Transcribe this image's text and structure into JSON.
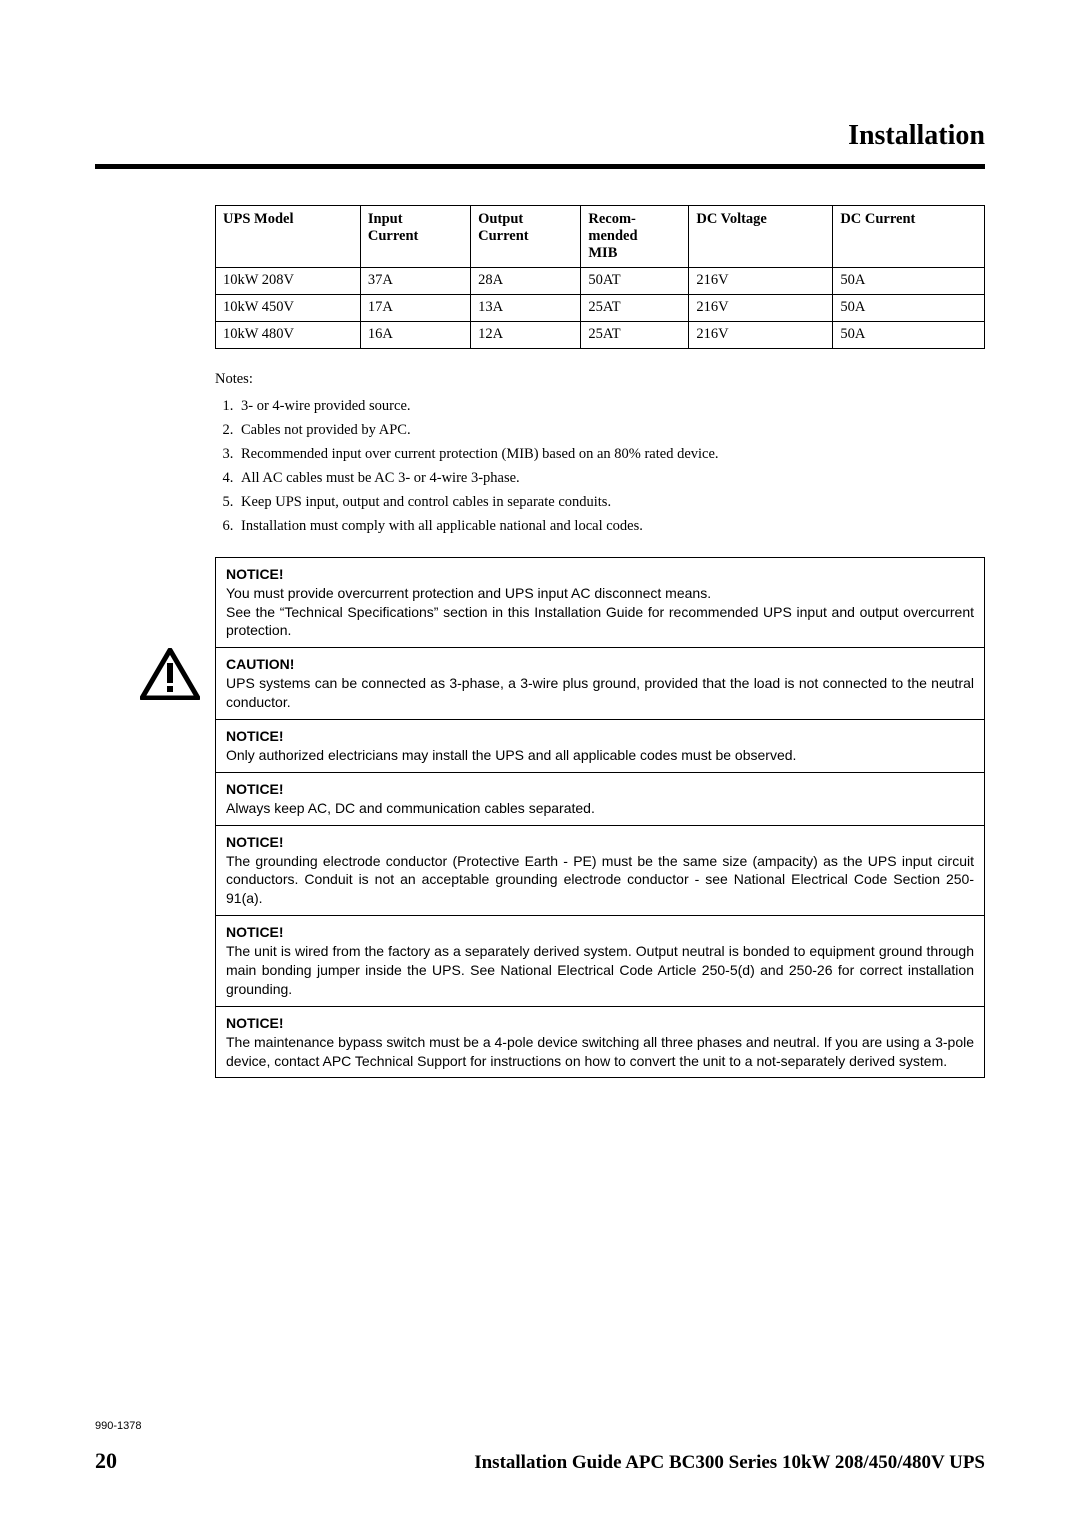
{
  "page": {
    "title": "Installation",
    "pageNumber": "20",
    "docCode": "990-1378",
    "footerTitle": "Installation Guide APC  BC300 Series 10kW 208/450/480V UPS"
  },
  "table": {
    "headers": [
      "UPS Model",
      "Input Current",
      "Output Current",
      "Recom-mended MIB",
      "DC Voltage",
      "DC Current"
    ],
    "rows": [
      [
        "10kW 208V",
        "37A",
        "28A",
        "50AT",
        "216V",
        "50A"
      ],
      [
        "10kW 450V",
        "17A",
        "13A",
        "25AT",
        "216V",
        "50A"
      ],
      [
        "10kW 480V",
        "16A",
        "12A",
        "25AT",
        "216V",
        "50A"
      ]
    ]
  },
  "notesLabel": "Notes:",
  "notes": [
    "3- or 4-wire provided source.",
    "Cables not provided by APC.",
    "Recommended input over current protection (MIB) based on an 80% rated device.",
    "All AC cables must be AC 3- or 4-wire 3-phase.",
    "Keep UPS input, output and control cables in separate conduits.",
    "Installation must comply with all applicable national and local codes."
  ],
  "notices": [
    {
      "type": "NOTICE!",
      "text": "You must provide overcurrent protection and UPS input AC disconnect means.\nSee the “Technical Specifications” section in this Installation Guide for recommended UPS input and output overcurrent protection."
    },
    {
      "type": "CAUTION!",
      "text": "UPS systems can be connected as 3-phase, a 3-wire plus ground, provided that the load is not connected to the neutral conductor."
    },
    {
      "type": "NOTICE!",
      "text": "Only authorized electricians may install the UPS and all applicable codes must be observed."
    },
    {
      "type": "NOTICE!",
      "text": "Always keep AC, DC and communication cables separated."
    },
    {
      "type": "NOTICE!",
      "text": "The grounding electrode conductor (Protective Earth - PE) must be the same size (ampacity) as the UPS input circuit conductors. Conduit is not an acceptable grounding electrode conductor - see National Electrical Code Section 250-91(a)."
    },
    {
      "type": "NOTICE!",
      "text": "The unit is wired from the factory as a separately derived system. Output neutral is bonded to equipment ground through main bonding jumper inside the UPS. See National Electrical Code Article 250-5(d) and 250-26 for correct installation grounding."
    },
    {
      "type": "NOTICE!",
      "text": "The maintenance bypass switch must be a 4-pole device switching all three phases and neutral. If you are using a 3-pole device, contact APC Technical Support for instructions on how to convert the unit to a not-separately derived system."
    }
  ],
  "style": {
    "rule_color": "#000000",
    "font_serif": "Georgia",
    "font_sans": "Arial"
  }
}
